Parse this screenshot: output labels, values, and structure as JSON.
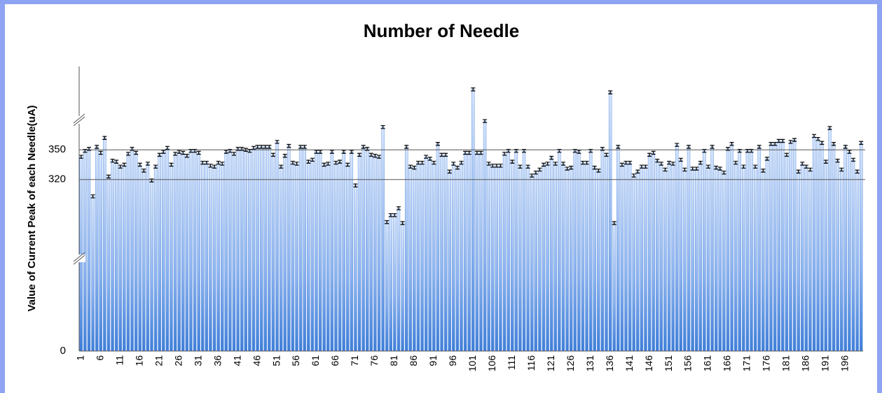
{
  "chart_data": {
    "type": "bar",
    "title": "Number of Needle",
    "y_label": "Value of Current Peak of each Needle(uA)",
    "categories": [
      "1",
      null,
      null,
      null,
      null,
      "6",
      null,
      null,
      null,
      null,
      "11",
      null,
      null,
      null,
      null,
      "16",
      null,
      null,
      null,
      null,
      "21",
      null,
      null,
      null,
      null,
      "26",
      null,
      null,
      null,
      null,
      "31",
      null,
      null,
      null,
      null,
      "36",
      null,
      null,
      null,
      null,
      "41",
      null,
      null,
      null,
      null,
      "46",
      null,
      null,
      null,
      null,
      "51",
      null,
      null,
      null,
      null,
      "56",
      null,
      null,
      null,
      null,
      "61",
      null,
      null,
      null,
      null,
      "66",
      null,
      null,
      null,
      null,
      "71",
      null,
      null,
      null,
      null,
      "76",
      null,
      null,
      null,
      null,
      "81",
      null,
      null,
      null,
      null,
      "86",
      null,
      null,
      null,
      null,
      "91",
      null,
      null,
      null,
      null,
      "96",
      null,
      null,
      null,
      null,
      "101",
      null,
      null,
      null,
      null,
      "106",
      null,
      null,
      null,
      null,
      "111",
      null,
      null,
      null,
      null,
      "116",
      null,
      null,
      null,
      null,
      "121",
      null,
      null,
      null,
      null,
      "126",
      null,
      null,
      null,
      null,
      "131",
      null,
      null,
      null,
      null,
      "136",
      null,
      null,
      null,
      null,
      "141",
      null,
      null,
      null,
      null,
      "146",
      null,
      null,
      null,
      null,
      "151",
      null,
      null,
      null,
      null,
      "156",
      null,
      null,
      null,
      null,
      "161",
      null,
      null,
      null,
      null,
      "166",
      null,
      null,
      null,
      null,
      "171",
      null,
      null,
      null,
      null,
      "176",
      null,
      null,
      null,
      null,
      "181",
      null,
      null,
      null,
      null,
      "186",
      null,
      null,
      null,
      null,
      "191",
      null,
      null,
      null,
      null,
      "196",
      null,
      null,
      null,
      null
    ],
    "values": [
      343,
      349,
      351,
      303,
      353,
      347,
      362,
      323,
      339,
      338,
      333,
      335,
      346,
      351,
      347,
      335,
      329,
      336,
      319,
      333,
      345,
      348,
      352,
      335,
      346,
      348,
      347,
      344,
      349,
      349,
      347,
      337,
      337,
      334,
      333,
      337,
      336,
      348,
      349,
      346,
      351,
      351,
      350,
      349,
      352,
      353,
      353,
      353,
      353,
      345,
      358,
      333,
      344,
      354,
      337,
      336,
      353,
      353,
      338,
      340,
      348,
      348,
      335,
      336,
      348,
      337,
      338,
      348,
      335,
      348,
      314,
      345,
      353,
      351,
      345,
      344,
      343,
      373,
      277,
      284,
      284,
      291,
      276,
      353,
      333,
      332,
      337,
      337,
      343,
      341,
      337,
      356,
      345,
      345,
      328,
      336,
      332,
      337,
      347,
      347,
      411,
      347,
      347,
      379,
      336,
      334,
      334,
      334,
      346,
      349,
      338,
      349,
      333,
      349,
      333,
      324,
      327,
      330,
      335,
      336,
      342,
      336,
      349,
      336,
      331,
      332,
      349,
      348,
      337,
      337,
      349,
      332,
      329,
      351,
      345,
      408,
      276,
      353,
      335,
      337,
      337,
      324,
      328,
      333,
      333,
      345,
      347,
      339,
      336,
      330,
      337,
      336,
      355,
      340,
      330,
      353,
      331,
      331,
      337,
      349,
      333,
      353,
      332,
      331,
      327,
      351,
      356,
      337,
      349,
      333,
      349,
      349,
      333,
      353,
      329,
      341,
      356,
      356,
      359,
      359,
      345,
      358,
      360,
      328,
      336,
      333,
      330,
      364,
      361,
      357,
      338,
      372,
      356,
      339,
      330,
      353,
      348,
      340,
      328,
      357
    ],
    "error": 1.5,
    "color": "#4a86dc",
    "ylim": [
      0,
      430
    ],
    "yticks": [
      0,
      320,
      350
    ],
    "axis_break": 240,
    "grid": true
  }
}
